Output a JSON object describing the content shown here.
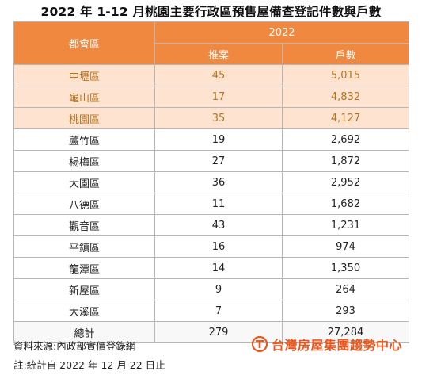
{
  "title": "2022 年 1-12 月桃園主要行政區預售屋備查登記件數與戶數",
  "table": {
    "district_header": "都會區",
    "year_header": "2022",
    "col_cases": "推案",
    "col_units": "戶數",
    "rows": [
      {
        "district": "中壢區",
        "cases": "45",
        "units": "5,015",
        "highlight": true
      },
      {
        "district": "龜山區",
        "cases": "17",
        "units": "4,832",
        "highlight": true
      },
      {
        "district": "桃園區",
        "cases": "35",
        "units": "4,127",
        "highlight": true
      },
      {
        "district": "蘆竹區",
        "cases": "19",
        "units": "2,692",
        "highlight": false
      },
      {
        "district": "楊梅區",
        "cases": "27",
        "units": "1,872",
        "highlight": false
      },
      {
        "district": "大園區",
        "cases": "36",
        "units": "2,952",
        "highlight": false
      },
      {
        "district": "八德區",
        "cases": "11",
        "units": "1,682",
        "highlight": false
      },
      {
        "district": "觀音區",
        "cases": "43",
        "units": "1,231",
        "highlight": false
      },
      {
        "district": "平鎮區",
        "cases": "16",
        "units": "974",
        "highlight": false
      },
      {
        "district": "龍潭區",
        "cases": "14",
        "units": "1,350",
        "highlight": false
      },
      {
        "district": "新屋區",
        "cases": "9",
        "units": "264",
        "highlight": false
      },
      {
        "district": "大溪區",
        "cases": "7",
        "units": "293",
        "highlight": false
      }
    ],
    "total": {
      "district": "總計",
      "cases": "279",
      "units": "27,284"
    }
  },
  "footer": {
    "source": "資料來源:內政部實價登錄網",
    "note": "註:統計自 2022 年 12 月 22 日止"
  },
  "brand": {
    "name": "台灣房屋集團趨勢中心",
    "logo_icon": "taiwan-realty-logo-icon",
    "color": "#e8571f"
  },
  "colors": {
    "header_orange": "#f0883f",
    "highlight_row": "#fde3d0",
    "highlight_text": "#b8741f"
  }
}
